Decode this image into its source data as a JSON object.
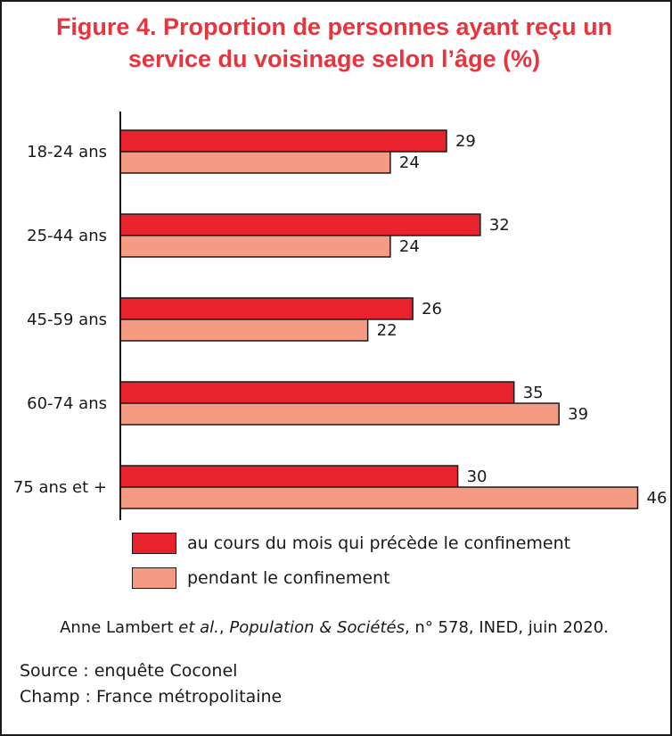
{
  "title_lines": [
    "Figure 4. Proportion de personnes ayant reçu un",
    "service du voisinage selon l’âge (%)"
  ],
  "colors": {
    "title": "#e8343c",
    "series_before": "#e8232e",
    "series_during": "#f59a83",
    "outline": "#1a1a1a"
  },
  "chart_data": {
    "type": "bar",
    "orientation": "horizontal",
    "title": "Figure 4. Proportion de personnes ayant reçu un service du voisinage selon l’âge (%)",
    "categories": [
      "18-24 ans",
      "25-44 ans",
      "45-59 ans",
      "60-74 ans",
      "75 ans et +"
    ],
    "series": [
      {
        "name": "au cours du mois qui précède le confinement",
        "values": [
          29,
          32,
          26,
          35,
          30
        ]
      },
      {
        "name": "pendant le confinement",
        "values": [
          24,
          24,
          22,
          39,
          46
        ]
      }
    ],
    "xlim": [
      0,
      46
    ],
    "data_labels": true,
    "grid": false,
    "legend_position": "bottom-left"
  },
  "legend": [
    {
      "label": "au cours du mois qui précède le confinement"
    },
    {
      "label": "pendant le confinement"
    }
  ],
  "citation": {
    "prefix": "Anne Lambert ",
    "etal": "et al.",
    "sep": ", ",
    "journal": "Population & Sociétés",
    "rest": ", n° 578, INED, juin 2020."
  },
  "source_lines": [
    "Source : enquête Coconel",
    "Champ : France métropolitaine"
  ]
}
